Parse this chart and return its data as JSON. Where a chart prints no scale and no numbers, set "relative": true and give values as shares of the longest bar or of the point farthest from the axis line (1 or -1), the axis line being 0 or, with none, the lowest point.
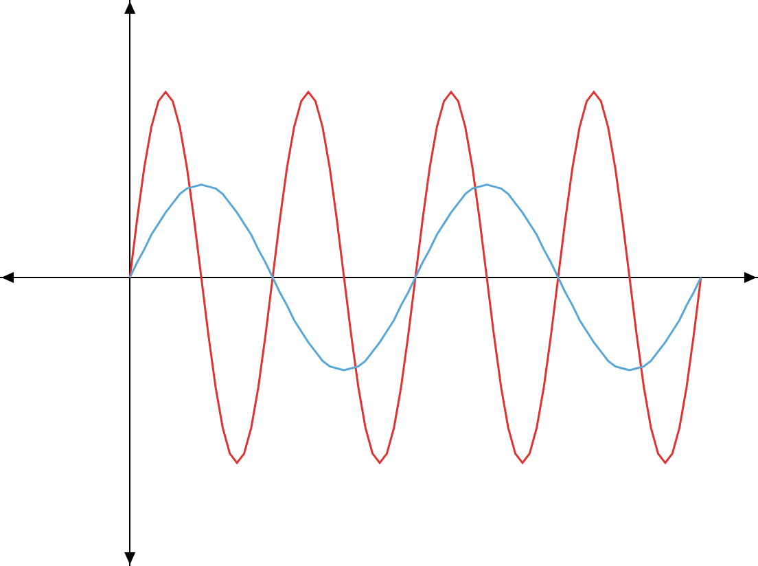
{
  "chart_data": {
    "type": "line",
    "relative": true,
    "line_style": "solid",
    "categories": [
      null,
      null,
      null,
      null,
      null,
      null,
      null,
      null,
      null,
      null,
      null,
      null,
      null,
      null,
      null,
      null,
      null,
      null,
      null,
      null,
      null,
      null,
      null,
      null,
      null,
      null,
      null,
      null,
      null,
      null,
      null,
      null,
      null,
      null,
      null,
      null,
      null,
      null,
      null,
      null,
      null,
      null,
      null,
      null,
      null,
      null,
      null,
      null,
      null,
      null,
      null,
      null,
      null,
      null,
      null,
      null,
      null,
      null,
      null,
      null,
      null,
      null,
      null,
      null,
      null,
      null,
      null,
      null,
      null,
      null,
      null,
      null,
      null,
      null,
      null,
      null,
      null,
      null,
      null,
      null,
      null
    ],
    "series": [
      {
        "color": "#e0332f",
        "values": [
          0,
          0.31,
          0.59,
          0.81,
          0.95,
          1,
          0.95,
          0.81,
          0.59,
          0.31,
          0,
          -0.31,
          -0.59,
          -0.81,
          -0.95,
          -1,
          -0.95,
          -0.81,
          -0.59,
          -0.31,
          0,
          0.31,
          0.59,
          0.81,
          0.95,
          1,
          0.95,
          0.81,
          0.59,
          0.31,
          0,
          -0.31,
          -0.59,
          -0.81,
          -0.95,
          -1,
          -0.95,
          -0.81,
          -0.59,
          -0.31,
          0,
          0.31,
          0.59,
          0.81,
          0.95,
          1,
          0.95,
          0.81,
          0.59,
          0.31,
          0,
          -0.31,
          -0.59,
          -0.81,
          -0.95,
          -1,
          -0.95,
          -0.81,
          -0.59,
          -0.31,
          0,
          0.31,
          0.59,
          0.81,
          0.95,
          1,
          0.95,
          0.81,
          0.59,
          0.31,
          0,
          -0.31,
          -0.59,
          -0.81,
          -0.95,
          -1,
          -0.95,
          -0.81,
          -0.59,
          -0.31,
          0
        ]
      },
      {
        "color": "#5aa6d8",
        "values": [
          0,
          0.08,
          0.15,
          0.23,
          0.29,
          0.35,
          0.4,
          0.45,
          0.48,
          0.49,
          0.5,
          0.49,
          0.48,
          0.45,
          0.4,
          0.35,
          0.29,
          0.23,
          0.15,
          0.08,
          0,
          -0.08,
          -0.15,
          -0.23,
          -0.29,
          -0.35,
          -0.4,
          -0.45,
          -0.48,
          -0.49,
          -0.5,
          -0.49,
          -0.48,
          -0.45,
          -0.4,
          -0.35,
          -0.29,
          -0.23,
          -0.15,
          -0.08,
          0,
          0.08,
          0.15,
          0.23,
          0.29,
          0.35,
          0.4,
          0.45,
          0.48,
          0.49,
          0.5,
          0.49,
          0.48,
          0.45,
          0.4,
          0.35,
          0.29,
          0.23,
          0.15,
          0.08,
          0,
          -0.08,
          -0.15,
          -0.23,
          -0.29,
          -0.35,
          -0.4,
          -0.45,
          -0.48,
          -0.49,
          -0.5,
          -0.49,
          -0.48,
          -0.45,
          -0.4,
          -0.35,
          -0.29,
          -0.23,
          -0.15,
          -0.08,
          0
        ]
      }
    ]
  }
}
